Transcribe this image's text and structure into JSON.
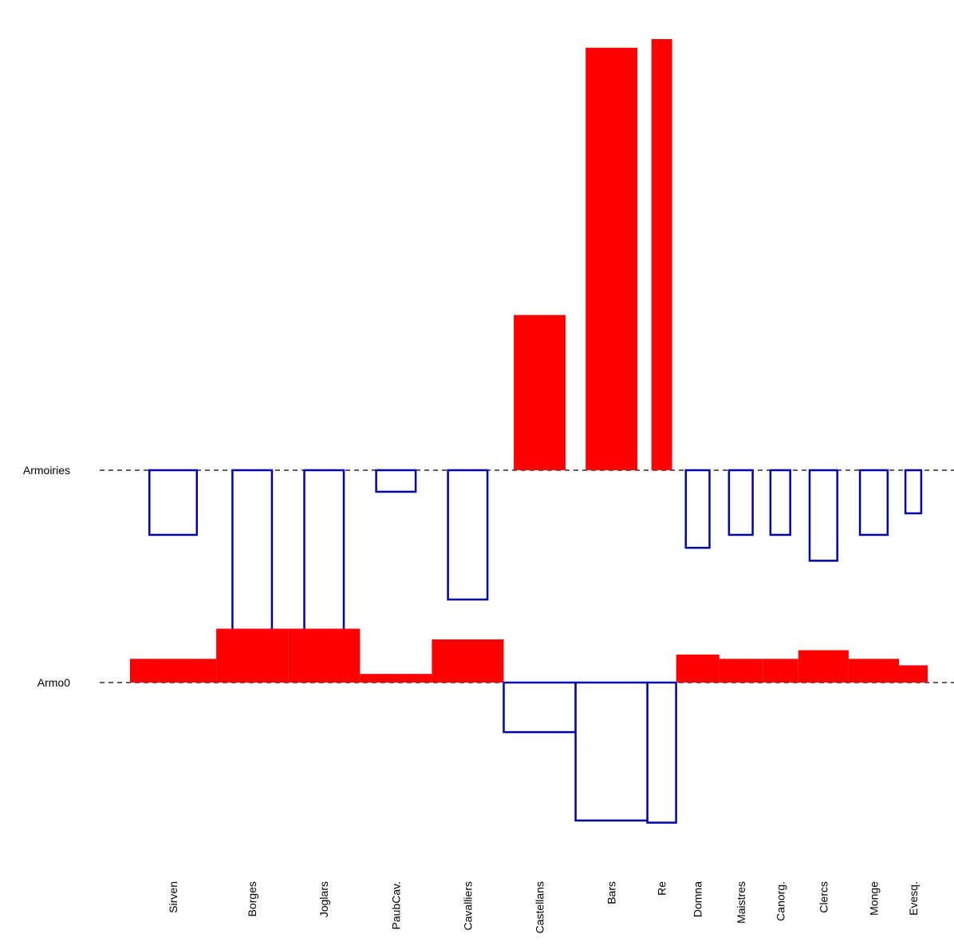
{
  "chart_data": {
    "type": "bar",
    "title": "",
    "rows": [
      {
        "label": "Armoiries",
        "scale": 540
      },
      {
        "label": "Armo0",
        "scale": 540
      }
    ],
    "categories": [
      "Sirven",
      "Borges",
      "Joglars",
      "PaubCav.",
      "Cavalliers",
      "Castellans",
      "Bars",
      "Re",
      "Domna",
      "Maistres",
      "Canorg.",
      "Clercs",
      "Monge",
      "Evesq."
    ],
    "widths": [
      0.06,
      0.05,
      0.05,
      0.05,
      0.05,
      0.05,
      0.05,
      0.02,
      0.03,
      0.03,
      0.025,
      0.035,
      0.035,
      0.02
    ],
    "armoiries_values": [
      -0.15,
      -0.37,
      -0.37,
      -0.05,
      -0.3,
      0.36,
      0.98,
      1.0,
      -0.18,
      -0.15,
      -0.15,
      -0.21,
      -0.15,
      -0.1
    ],
    "armo0_values": [
      0.055,
      0.125,
      0.125,
      0.02,
      0.1,
      -0.115,
      -0.32,
      -0.325,
      0.065,
      0.055,
      0.055,
      0.075,
      0.055,
      0.04
    ],
    "colors": {
      "positive": "#ff0000",
      "negative": "#0000aa",
      "baseline": "#000000"
    }
  }
}
